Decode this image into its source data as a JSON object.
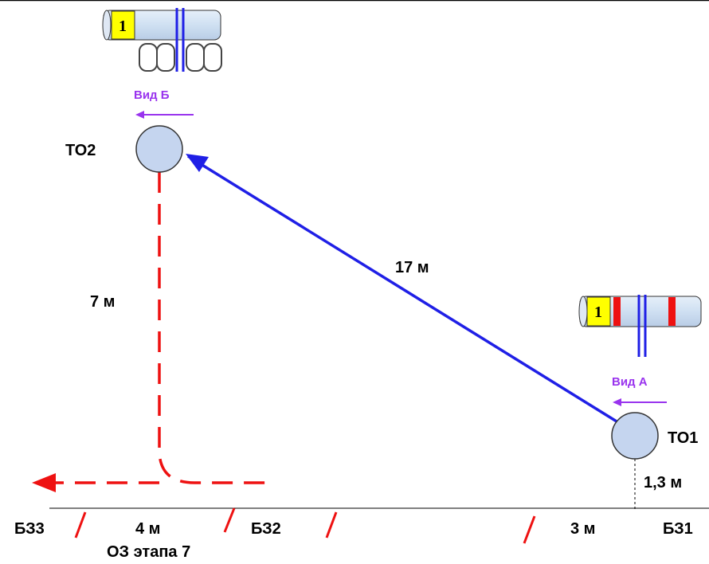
{
  "nodes": {
    "to1": "ТО1",
    "to2": "ТО2"
  },
  "distances": {
    "to1_to2": "17 м",
    "to2_down": "7 м",
    "to1_height": "1,3 м",
    "left_segment": "4 м",
    "right_segment": "3 м"
  },
  "views": {
    "a": "Вид А",
    "b": "Вид Б"
  },
  "markers": {
    "b31": "БЗ1",
    "b32": "БЗ2",
    "b33": "БЗ3"
  },
  "zone_label": "ОЗ этапа 7",
  "cable_tags": {
    "top": "1",
    "right": "1"
  },
  "colors": {
    "route_solid": "#1f1fe6",
    "route_dashed": "#ee1111",
    "view_arrow": "#9933ee",
    "node_fill": "#c5d5ef",
    "cable_fill": "#cfe0f2",
    "tag_fill": "#ffff00"
  }
}
